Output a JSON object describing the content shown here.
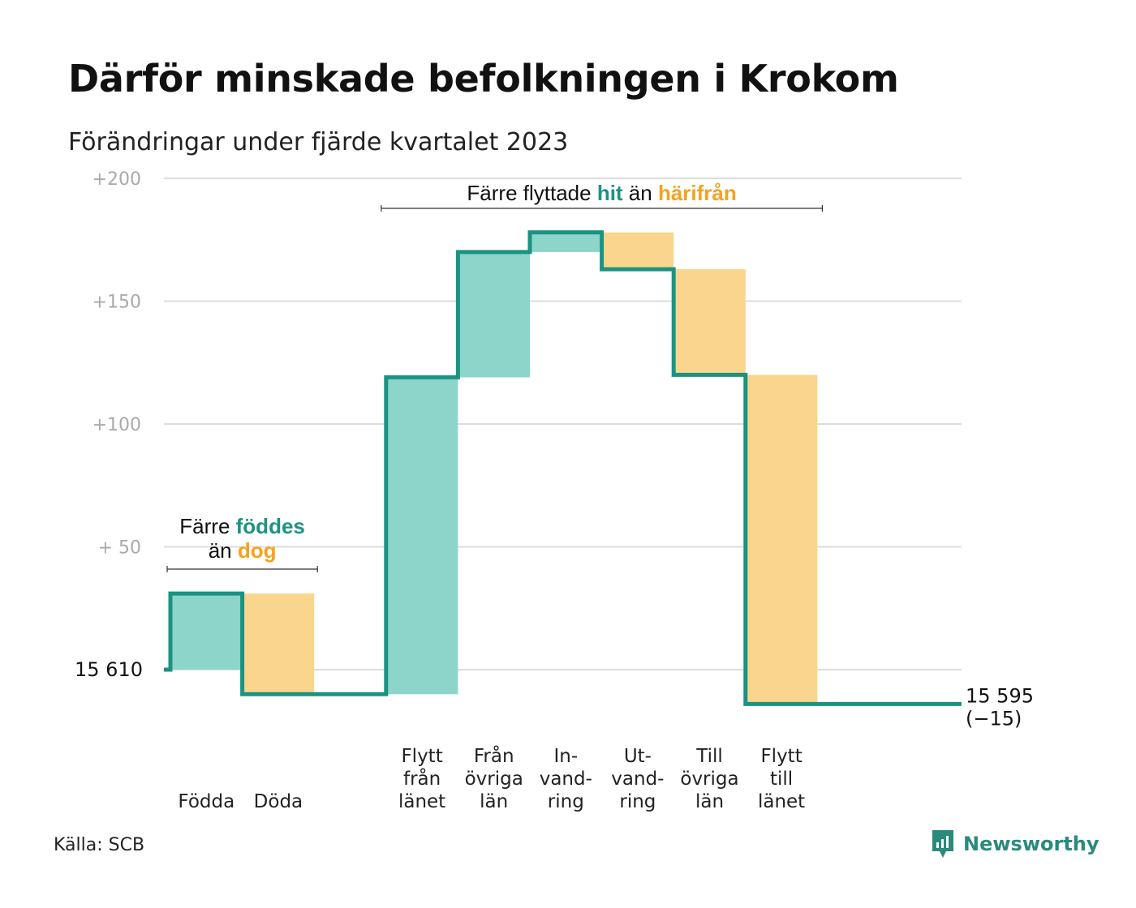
{
  "title": "Därför minskade befolkningen i Krokom",
  "subtitle": "Förändringar under fjärde kvartalet 2023",
  "source": "Källa: SCB",
  "logo": {
    "name": "Newsworthy",
    "icon": "newsworthy-logo-icon"
  },
  "colors": {
    "inflow": "#8dd4cb",
    "outflow": "#fad58d",
    "line": "#1a9380",
    "accent_teal": "#1a9380",
    "accent_orange": "#f5a21e",
    "grid": "#dddddd",
    "tick": "#aaaaaa"
  },
  "annotations": {
    "births": {
      "line1_prefix": "Färre",
      "line1_highlight": "föddes",
      "line2_prefix": "än",
      "line2_highlight": "dog"
    },
    "migration": {
      "prefix": "Färre flyttade",
      "highlight1": "hit",
      "middle": "än",
      "highlight2": "härifrån"
    }
  },
  "chart_data": {
    "type": "waterfall",
    "start_label": "15 610",
    "end_label_value": "15 595",
    "end_label_change": "(−15)",
    "ylim": [
      -15,
      200
    ],
    "y_ticks": [
      {
        "value": 200,
        "label": "+200"
      },
      {
        "value": 150,
        "label": "+150"
      },
      {
        "value": 100,
        "label": "+100"
      },
      {
        "value": 50,
        "label": "+ 50"
      }
    ],
    "steps": [
      {
        "label_lines": [
          "Födda"
        ],
        "change": 31,
        "direction": "in"
      },
      {
        "label_lines": [
          "Döda"
        ],
        "change": -41,
        "direction": "out"
      },
      {
        "label_lines": [],
        "change": 0,
        "direction": "none"
      },
      {
        "label_lines": [
          "Flytt",
          "från",
          "länet"
        ],
        "change": 129,
        "direction": "in"
      },
      {
        "label_lines": [
          "Från",
          "övriga",
          "län"
        ],
        "change": 51,
        "direction": "in"
      },
      {
        "label_lines": [
          "In-",
          "vand-",
          "ring"
        ],
        "change": 8,
        "direction": "in"
      },
      {
        "label_lines": [
          "Ut-",
          "vand-",
          "ring"
        ],
        "change": -15,
        "direction": "out"
      },
      {
        "label_lines": [
          "Till",
          "övriga",
          "län"
        ],
        "change": -43,
        "direction": "out"
      },
      {
        "label_lines": [
          "Flytt",
          "till",
          "länet"
        ],
        "change": -134,
        "direction": "out"
      },
      {
        "label_lines": [],
        "change": 0,
        "direction": "none"
      }
    ]
  }
}
